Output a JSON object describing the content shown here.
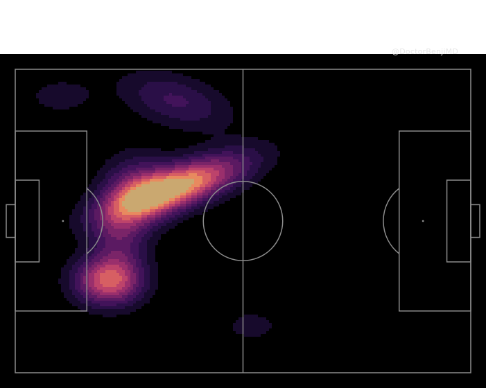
{
  "header": {
    "left_text": "",
    "credit": "@DoctorBenjiMD"
  },
  "colors": {
    "background": "#000000",
    "header_background": "#ffffff",
    "pitch_lines": "#8c8c8c",
    "heat_low": "#1c0c3b",
    "heat_mid": "#b5366b",
    "heat_high": "#f7d27a"
  },
  "chart_data": {
    "type": "heatmap",
    "title": "",
    "xlabel": "",
    "ylabel": "",
    "pitch": {
      "length": 105,
      "width": 68,
      "xlim": [
        0,
        105
      ],
      "ylim": [
        0,
        68
      ],
      "grid": false,
      "markings": [
        "touchlines",
        "halfway-line",
        "centre-circle",
        "penalty-areas",
        "six-yard-boxes",
        "goals",
        "penalty-spots",
        "penalty-arcs"
      ]
    },
    "density_levels": 10,
    "clusters": [
      {
        "x": 37,
        "y": 41.5,
        "sx": 11.5,
        "sy": 3.4,
        "angle": 19,
        "weight": 1.0
      },
      {
        "x": 28,
        "y": 41,
        "sx": 5.5,
        "sy": 5.5,
        "angle": 0,
        "weight": 0.4
      },
      {
        "x": 21.5,
        "y": 20.5,
        "sx": 5.5,
        "sy": 3.8,
        "angle": 0,
        "weight": 0.78
      },
      {
        "x": 24,
        "y": 30,
        "sx": 4.5,
        "sy": 5.5,
        "angle": 0,
        "weight": 0.35
      },
      {
        "x": 37,
        "y": 61,
        "sx": 9,
        "sy": 4,
        "angle": -15,
        "weight": 0.3
      },
      {
        "x": 10.5,
        "y": 62,
        "sx": 5.5,
        "sy": 2.8,
        "angle": 0,
        "weight": 0.16
      },
      {
        "x": 54.5,
        "y": 10.5,
        "sx": 5,
        "sy": 2.7,
        "angle": 0,
        "weight": 0.14
      }
    ]
  }
}
